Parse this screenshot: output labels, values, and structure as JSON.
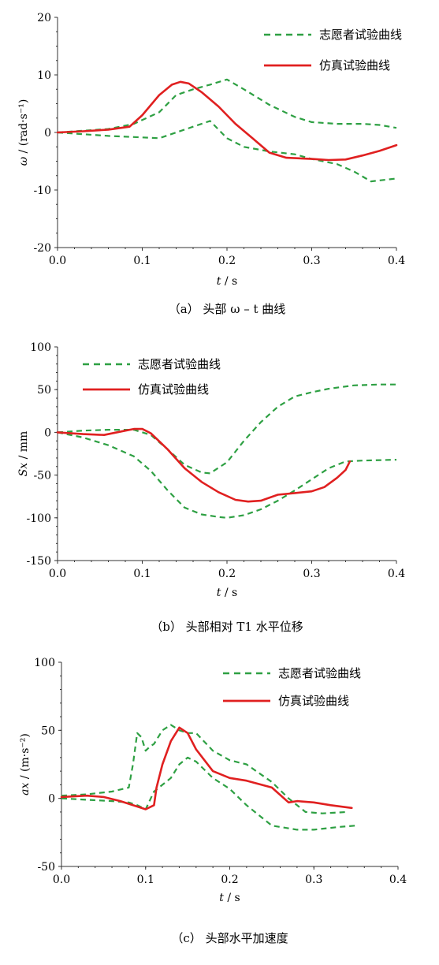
{
  "chart_data": [
    {
      "type": "line",
      "caption": "（a） 头部 ω – t 曲线",
      "xlabel": "t / s",
      "ylabel": "ω / (rad·s⁻¹)",
      "xlim": [
        0,
        0.4
      ],
      "ylim": [
        -20,
        20
      ],
      "xticks": [
        "0.0",
        "0.1",
        "0.2",
        "0.3",
        "0.4"
      ],
      "yticks": [
        "20",
        "10",
        "0",
        "-10",
        "-20"
      ],
      "legend_position": "top-right",
      "series": [
        {
          "name": "志愿者试验曲线",
          "style": "dashed",
          "color": "#2ea043",
          "x": [
            0,
            0.03,
            0.06,
            0.09,
            0.12,
            0.14,
            0.16,
            0.18,
            0.2,
            0.22,
            0.25,
            0.28,
            0.3,
            0.33,
            0.36,
            0.38,
            0.4
          ],
          "y": [
            0,
            0.3,
            0.6,
            1.5,
            3.5,
            6.5,
            7.5,
            8.3,
            9.2,
            7.5,
            4.8,
            2.7,
            1.8,
            1.5,
            1.5,
            1.3,
            0.8
          ]
        },
        {
          "name": "",
          "style": "dashed",
          "color": "#2ea043",
          "x": [
            0,
            0.03,
            0.06,
            0.09,
            0.12,
            0.13,
            0.15,
            0.18,
            0.2,
            0.22,
            0.25,
            0.28,
            0.3,
            0.33,
            0.35,
            0.37,
            0.4
          ],
          "y": [
            0,
            -0.3,
            -0.6,
            -0.8,
            -1.0,
            -0.5,
            0.5,
            2.0,
            -1.0,
            -2.5,
            -3.3,
            -3.8,
            -4.6,
            -5.5,
            -6.8,
            -8.5,
            -8.0
          ]
        },
        {
          "name": "仿真试验曲线",
          "style": "solid",
          "color": "#e02020",
          "x": [
            0,
            0.03,
            0.06,
            0.085,
            0.1,
            0.12,
            0.135,
            0.145,
            0.155,
            0.17,
            0.19,
            0.21,
            0.23,
            0.25,
            0.27,
            0.3,
            0.32,
            0.34,
            0.36,
            0.38,
            0.4
          ],
          "y": [
            0,
            0.2,
            0.5,
            1.0,
            3.0,
            6.5,
            8.3,
            8.8,
            8.5,
            7.0,
            4.5,
            1.5,
            -1.0,
            -3.5,
            -4.4,
            -4.6,
            -4.8,
            -4.7,
            -4.0,
            -3.2,
            -2.2
          ]
        }
      ]
    },
    {
      "type": "line",
      "caption": "（b） 头部相对 T1 水平位移",
      "xlabel": "t / s",
      "ylabel": "Sx / mm",
      "xlim": [
        0,
        0.4
      ],
      "ylim": [
        -150,
        100
      ],
      "xticks": [
        "0.0",
        "0.1",
        "0.2",
        "0.3",
        "0.4"
      ],
      "yticks": [
        "100",
        "50",
        "0",
        "-50",
        "-100",
        "-150"
      ],
      "legend_position": "top-left",
      "series": [
        {
          "name": "志愿者试验曲线",
          "style": "dashed",
          "color": "#2ea043",
          "x": [
            0,
            0.03,
            0.06,
            0.09,
            0.11,
            0.13,
            0.15,
            0.17,
            0.18,
            0.2,
            0.22,
            0.24,
            0.26,
            0.28,
            0.3,
            0.32,
            0.35,
            0.38,
            0.4
          ],
          "y": [
            0,
            2,
            3,
            3,
            -3,
            -20,
            -38,
            -47,
            -48,
            -35,
            -10,
            12,
            30,
            42,
            47,
            51,
            55,
            56,
            56
          ]
        },
        {
          "name": "",
          "style": "dashed",
          "color": "#2ea043",
          "x": [
            0,
            0.03,
            0.06,
            0.09,
            0.11,
            0.13,
            0.15,
            0.17,
            0.19,
            0.2,
            0.22,
            0.24,
            0.26,
            0.28,
            0.3,
            0.32,
            0.34,
            0.36,
            0.4
          ],
          "y": [
            0,
            -6,
            -15,
            -28,
            -45,
            -68,
            -88,
            -96,
            -99,
            -100,
            -97,
            -90,
            -80,
            -68,
            -55,
            -42,
            -34,
            -33,
            -32
          ]
        },
        {
          "name": "仿真试验曲线",
          "style": "solid",
          "color": "#e02020",
          "x": [
            0,
            0.03,
            0.055,
            0.075,
            0.09,
            0.1,
            0.11,
            0.13,
            0.15,
            0.17,
            0.19,
            0.21,
            0.225,
            0.24,
            0.26,
            0.28,
            0.3,
            0.315,
            0.33,
            0.34,
            0.345
          ],
          "y": [
            0,
            -2,
            -3,
            1,
            4,
            4,
            -1,
            -20,
            -42,
            -58,
            -70,
            -79,
            -81,
            -80,
            -73,
            -71,
            -69,
            -64,
            -53,
            -44,
            -34
          ]
        }
      ]
    },
    {
      "type": "line",
      "caption": "（c） 头部水平加速度",
      "xlabel": "t / s",
      "ylabel": "ax / (m·s⁻²)",
      "xlim": [
        0,
        0.4
      ],
      "ylim": [
        -50,
        100
      ],
      "xticks": [
        "0.0",
        "0.1",
        "0.2",
        "0.3",
        "0.4"
      ],
      "yticks": [
        "100",
        "50",
        "0",
        "-50"
      ],
      "legend_position": "top-right",
      "series": [
        {
          "name": "志愿者试验曲线",
          "style": "dashed",
          "color": "#2ea043",
          "x": [
            0,
            0.03,
            0.06,
            0.08,
            0.085,
            0.09,
            0.095,
            0.1,
            0.105,
            0.11,
            0.12,
            0.13,
            0.14,
            0.15,
            0.16,
            0.18,
            0.2,
            0.22,
            0.25,
            0.27,
            0.29,
            0.31,
            0.34
          ],
          "y": [
            2,
            3,
            5,
            8,
            25,
            48,
            45,
            35,
            38,
            40,
            50,
            54,
            50,
            48,
            48,
            35,
            28,
            25,
            12,
            0,
            -10,
            -11,
            -10
          ]
        },
        {
          "name": "",
          "style": "dashed",
          "color": "#2ea043",
          "x": [
            0,
            0.03,
            0.06,
            0.08,
            0.09,
            0.1,
            0.11,
            0.12,
            0.13,
            0.14,
            0.15,
            0.16,
            0.18,
            0.2,
            0.22,
            0.25,
            0.28,
            0.3,
            0.33,
            0.35
          ],
          "y": [
            0,
            -1,
            -2,
            -3,
            -5,
            -8,
            5,
            10,
            15,
            25,
            30,
            27,
            15,
            7,
            -5,
            -20,
            -23,
            -23,
            -21,
            -20
          ]
        },
        {
          "name": "仿真试验曲线",
          "style": "solid",
          "color": "#e02020",
          "x": [
            0,
            0.03,
            0.05,
            0.07,
            0.09,
            0.1,
            0.11,
            0.113,
            0.12,
            0.13,
            0.14,
            0.15,
            0.16,
            0.18,
            0.2,
            0.22,
            0.25,
            0.27,
            0.28,
            0.3,
            0.32,
            0.345
          ],
          "y": [
            1,
            2,
            1,
            -2,
            -6,
            -8,
            -5,
            8,
            25,
            42,
            52,
            48,
            36,
            20,
            15,
            13,
            8,
            -3,
            -2,
            -3,
            -5,
            -7
          ]
        }
      ]
    }
  ]
}
